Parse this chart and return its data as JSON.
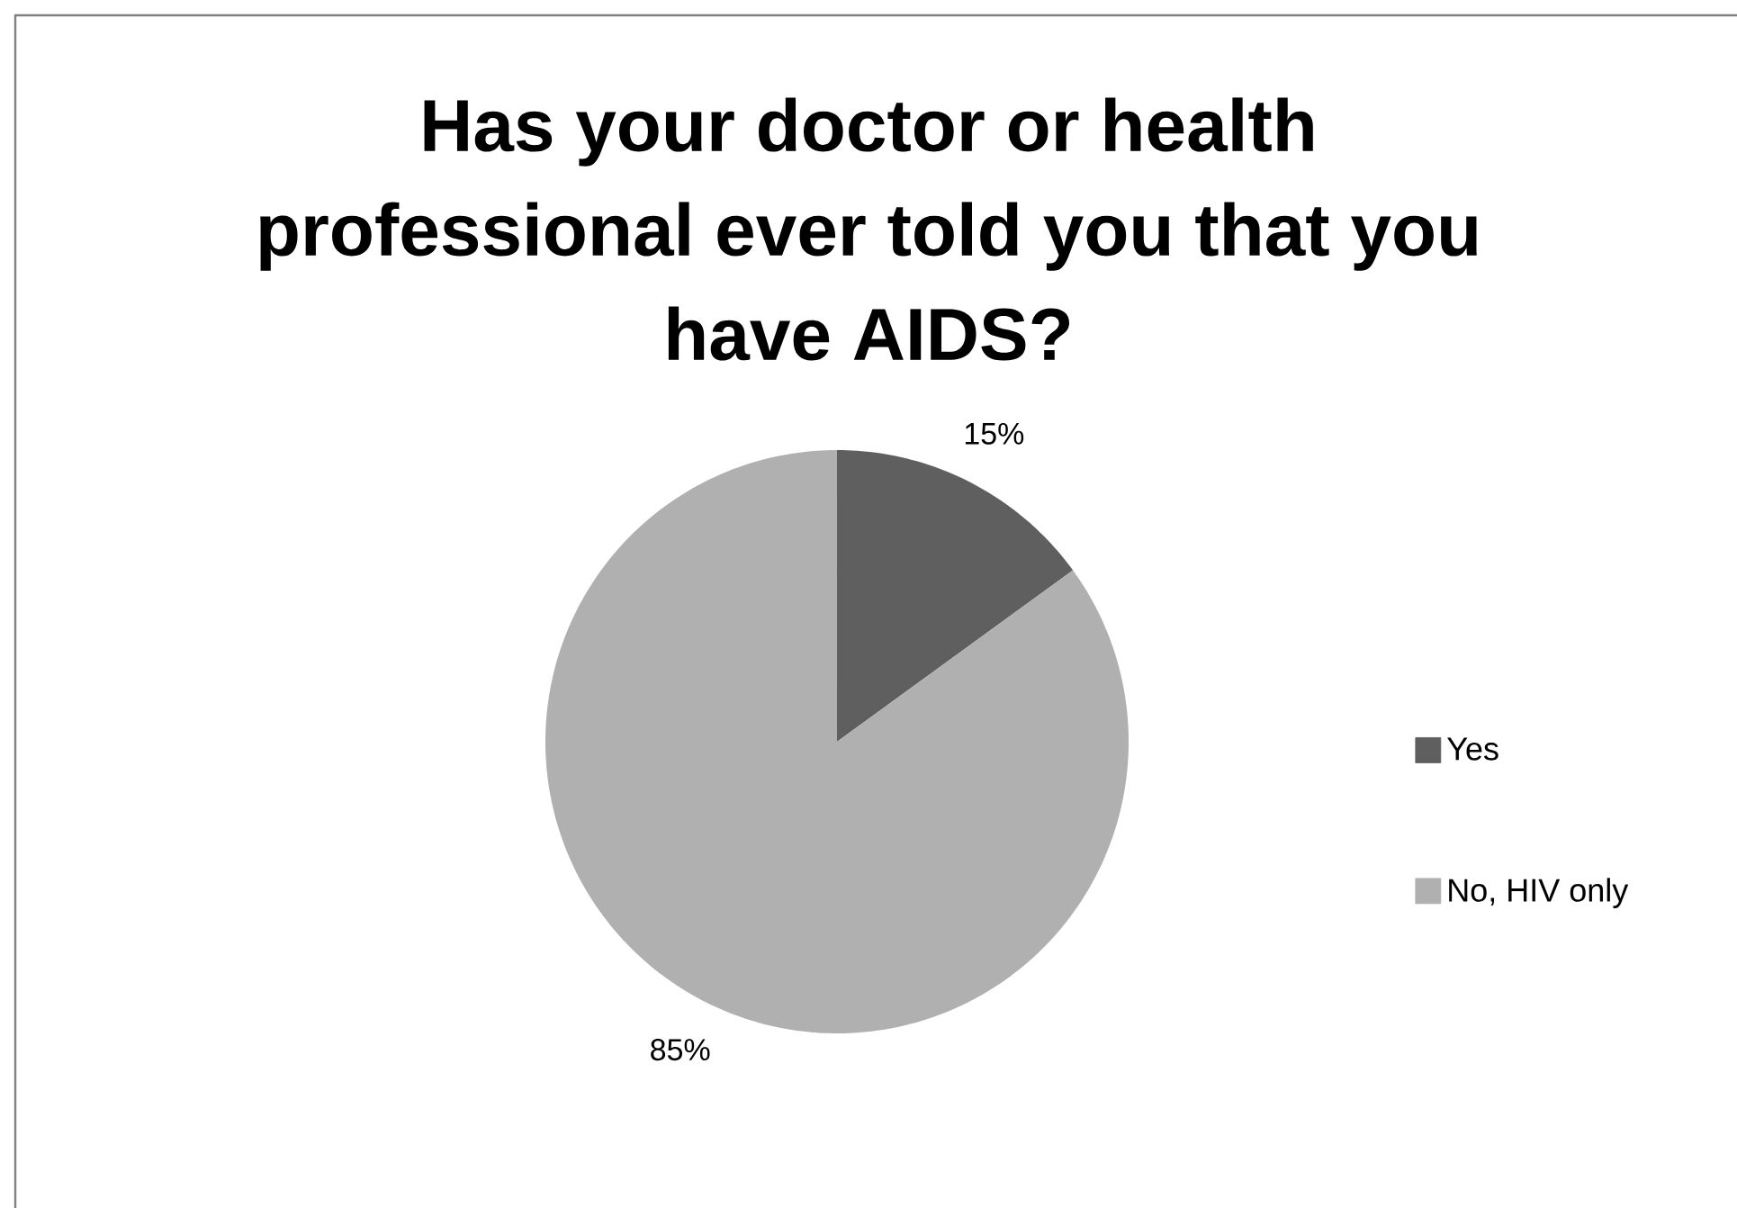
{
  "chart_data": {
    "type": "pie",
    "title": "Has your doctor or health professional ever told you that you have AIDS?",
    "categories": [
      "Yes",
      "No, HIV only"
    ],
    "values": [
      15,
      85
    ],
    "colors": [
      "#5f5f5f",
      "#b0b0b0"
    ],
    "value_labels": [
      "15%",
      "85%"
    ],
    "legend": "right"
  }
}
